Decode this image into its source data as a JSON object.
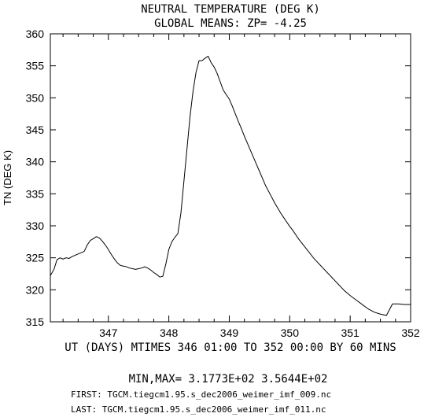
{
  "chart_data": {
    "type": "line",
    "title": "NEUTRAL TEMPERATURE (DEG K)",
    "subtitle": "GLOBAL MEANS: ZP= -4.25",
    "ylabel": "TN (DEG K)",
    "xlabel": "UT (DAYS) MTIMES 346 01:00 TO 352 00:00 BY    60 MINS",
    "xlim": [
      346.04,
      352.0
    ],
    "ylim": [
      315,
      360
    ],
    "x_ticks": [
      347,
      348,
      349,
      350,
      351,
      352
    ],
    "y_ticks": [
      315,
      320,
      325,
      330,
      335,
      340,
      345,
      350,
      355,
      360
    ],
    "grid": false,
    "series": [
      {
        "x": [
          346.04,
          346.1,
          346.15,
          346.2,
          346.25,
          346.3,
          346.35,
          346.4,
          346.45,
          346.5,
          346.55,
          346.6,
          346.65,
          346.7,
          346.75,
          346.8,
          346.85,
          346.9,
          346.95,
          347.0,
          347.05,
          347.1,
          347.15,
          347.2,
          347.25,
          347.3,
          347.35,
          347.4,
          347.45,
          347.5,
          347.55,
          347.6,
          347.65,
          347.7,
          347.75,
          347.8,
          347.85,
          347.9,
          347.95,
          348.0,
          348.05,
          348.1,
          348.15,
          348.2,
          348.25,
          348.3,
          348.35,
          348.4,
          348.45,
          348.5,
          348.55,
          348.6,
          348.65,
          348.7,
          348.75,
          348.8,
          348.85,
          348.9,
          348.95,
          349.0,
          349.05,
          349.1,
          349.15,
          349.2,
          349.25,
          349.3,
          349.35,
          349.4,
          349.45,
          349.5,
          349.55,
          349.6,
          349.65,
          349.7,
          349.75,
          349.8,
          349.85,
          349.9,
          349.95,
          350.0,
          350.05,
          350.1,
          350.15,
          350.2,
          350.25,
          350.3,
          350.35,
          350.4,
          350.45,
          350.5,
          350.55,
          350.6,
          350.65,
          350.7,
          350.75,
          350.8,
          350.85,
          350.9,
          350.95,
          351.0,
          351.1,
          351.2,
          351.3,
          351.4,
          351.5,
          351.6,
          351.7,
          351.8,
          351.9,
          352.0
        ],
        "values": [
          322.2,
          323.2,
          324.7,
          325.0,
          324.8,
          325.0,
          324.9,
          325.2,
          325.4,
          325.6,
          325.8,
          326.0,
          327.0,
          327.7,
          328.0,
          328.3,
          328.1,
          327.6,
          327.0,
          326.3,
          325.5,
          324.8,
          324.2,
          323.8,
          323.7,
          323.6,
          323.4,
          323.3,
          323.2,
          323.3,
          323.4,
          323.6,
          323.4,
          323.1,
          322.7,
          322.4,
          322.0,
          322.1,
          324.0,
          326.3,
          327.5,
          328.2,
          328.8,
          332.0,
          337.0,
          342.0,
          347.0,
          351.0,
          354.0,
          355.8,
          355.8,
          356.2,
          356.5,
          355.5,
          354.8,
          353.8,
          352.5,
          351.2,
          350.5,
          349.8,
          348.7,
          347.5,
          346.3,
          345.2,
          344.0,
          342.9,
          341.8,
          340.7,
          339.6,
          338.5,
          337.4,
          336.3,
          335.4,
          334.5,
          333.6,
          332.8,
          332.0,
          331.3,
          330.6,
          329.9,
          329.3,
          328.6,
          327.9,
          327.3,
          326.7,
          326.1,
          325.5,
          324.9,
          324.4,
          323.9,
          323.4,
          322.9,
          322.4,
          321.9,
          321.4,
          320.9,
          320.4,
          319.9,
          319.5,
          319.1,
          318.4,
          317.7,
          317.0,
          316.5,
          316.2,
          316.0,
          317.8,
          317.8,
          317.7,
          317.7
        ]
      }
    ]
  },
  "footer": {
    "minmax": "MIN,MAX=  3.1773E+02  3.5644E+02",
    "first": "FIRST: TGCM.tiegcm1.95.s_dec2006_weimer_imf_009.nc",
    "last": "LAST:  TGCM.tiegcm1.95.s_dec2006_weimer_imf_011.nc"
  }
}
